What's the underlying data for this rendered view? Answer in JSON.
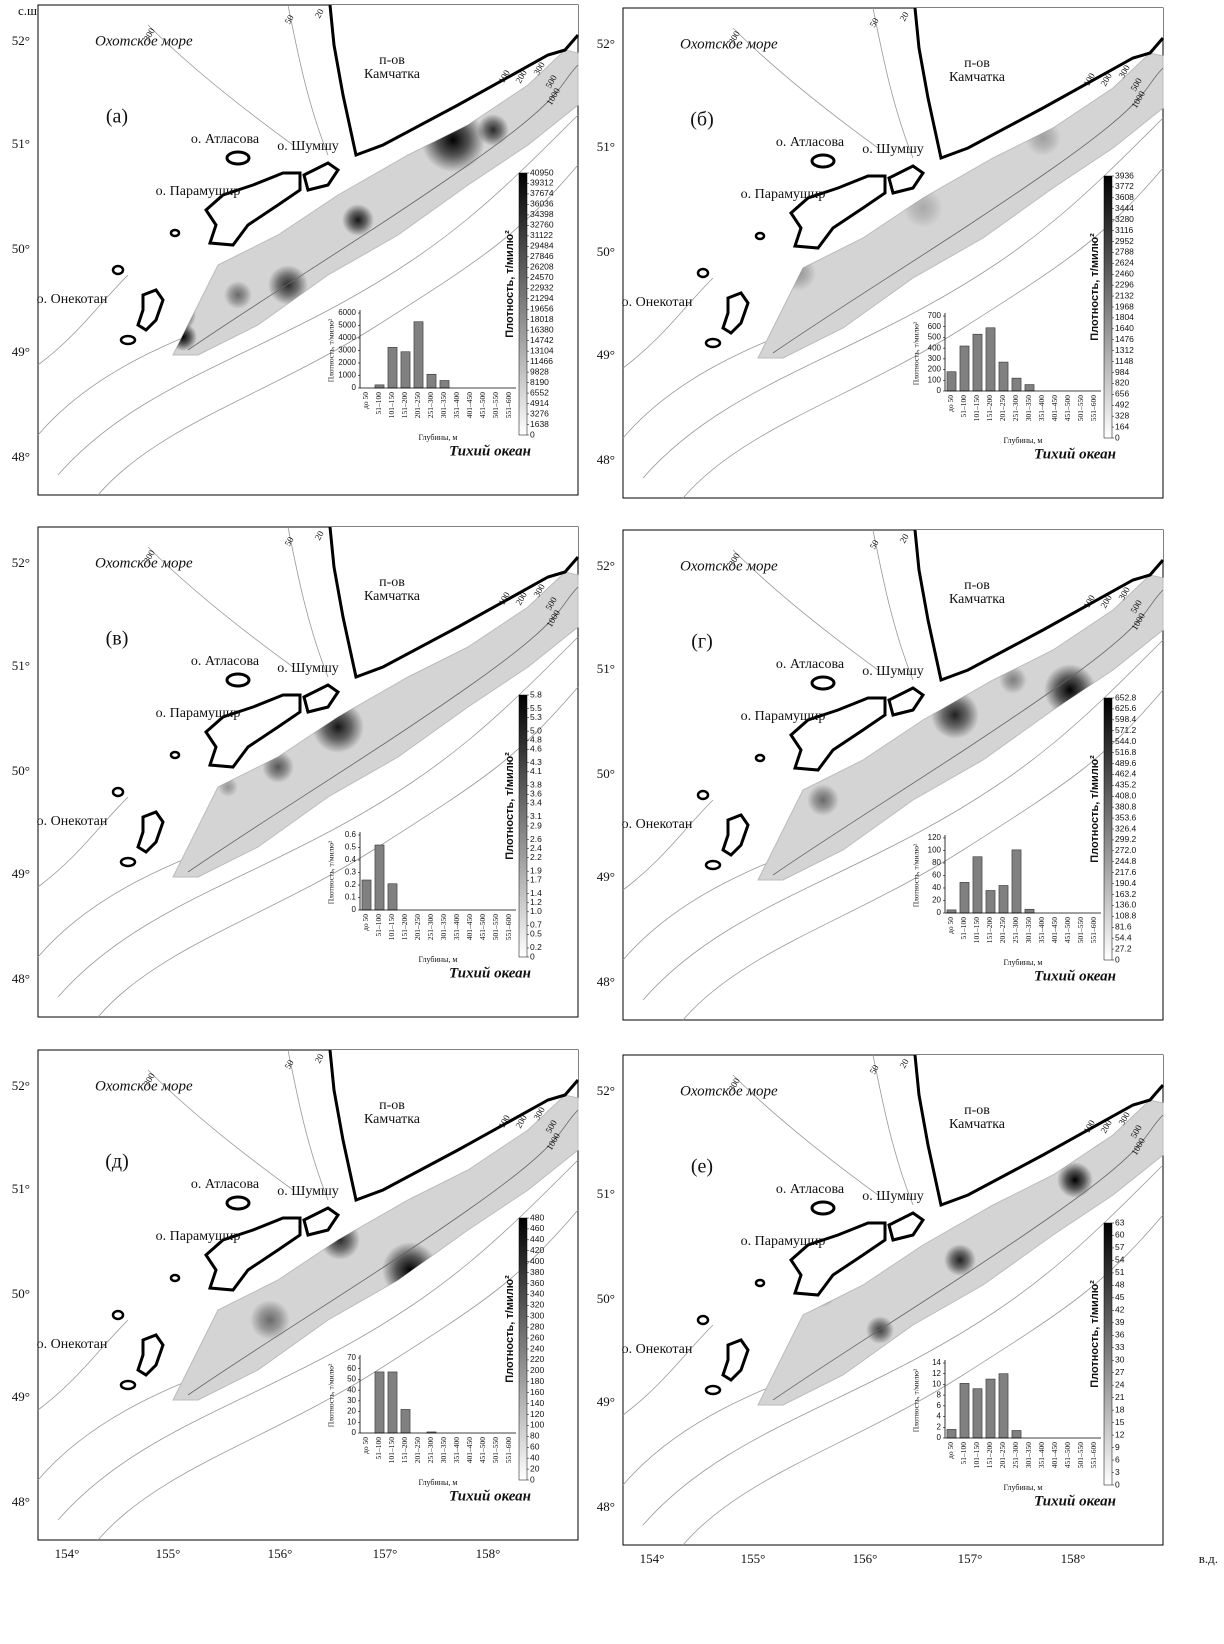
{
  "map": {
    "lat_unit": "с.ш.",
    "lon_unit": "в.д.",
    "lat_labels": [
      "52°",
      "51°",
      "50°",
      "49°",
      "48°"
    ],
    "lon_labels": [
      "154°",
      "155°",
      "156°",
      "157°",
      "158°"
    ],
    "sea": "Охотское море",
    "ocean": "Тихий океан",
    "peninsula": [
      "п-ов",
      "Камчатка"
    ],
    "islands": [
      "о. Атласова",
      "о. Шумшу",
      "о. Парамушир",
      "о. Онекотан"
    ],
    "isobaths": [
      "300",
      "50",
      "20",
      "100",
      "200",
      "300",
      "500",
      "1000"
    ]
  },
  "panel_labels": [
    "(а)",
    "(б)",
    "(в)",
    "(г)",
    "(д)",
    "(е)"
  ],
  "colorbars": [
    {
      "title": "Плотность, т/милю²",
      "ticks": [
        0,
        1638,
        3276,
        4914,
        6552,
        8190,
        9828,
        11466,
        13104,
        14742,
        16380,
        18018,
        19656,
        21294,
        22932,
        24570,
        26208,
        27846,
        29484,
        31122,
        32760,
        34398,
        36036,
        37674,
        39312,
        40950
      ]
    },
    {
      "title": "Плотность, т/милю²",
      "ticks": [
        0,
        164,
        328,
        492,
        656,
        820,
        984,
        1148,
        1312,
        1476,
        1640,
        1804,
        1968,
        2132,
        2296,
        2460,
        2624,
        2788,
        2952,
        3116,
        3280,
        3444,
        3608,
        3772,
        3936
      ]
    },
    {
      "title": "Плотность, т/милю²",
      "ticks": [
        0,
        0.2,
        0.5,
        0.7,
        {
          "value": 1.0,
          "label": "1.0"
        },
        1.2,
        1.4,
        1.7,
        1.9,
        2.2,
        2.4,
        2.6,
        2.9,
        3.1,
        3.4,
        3.6,
        3.8,
        4.1,
        4.3,
        4.6,
        4.8,
        {
          "value": 5.0,
          "label": "5.0"
        },
        5.3,
        5.5,
        5.8
      ]
    },
    {
      "title": "Плотность, т/милю²",
      "ticks": [
        0,
        27.2,
        54.4,
        81.6,
        108.8,
        {
          "value": 136,
          "label": "136.0"
        },
        163.2,
        190.4,
        217.6,
        244.8,
        {
          "value": 272,
          "label": "272.0"
        },
        299.2,
        326.4,
        353.6,
        380.8,
        {
          "value": 408,
          "label": "408.0"
        },
        435.2,
        462.4,
        489.6,
        516.8,
        {
          "value": 544,
          "label": "544.0"
        },
        571.2,
        598.4,
        625.6,
        652.8
      ]
    },
    {
      "title": "Плотность, т/милю²",
      "ticks": [
        0,
        20,
        40,
        60,
        80,
        100,
        120,
        140,
        160,
        180,
        200,
        220,
        240,
        260,
        280,
        300,
        320,
        340,
        360,
        380,
        400,
        420,
        440,
        460,
        480
      ]
    },
    {
      "title": "Плотность, т/милю²",
      "ticks": [
        0,
        3,
        6,
        9,
        12,
        15,
        18,
        21,
        24,
        27,
        30,
        33,
        36,
        39,
        42,
        45,
        48,
        51,
        54,
        57,
        60,
        63
      ]
    }
  ],
  "chart_data": [
    {
      "type": "bar",
      "color": "#808080",
      "xlabel": "Глубины, м",
      "ylabel": "Плотность, т/милю²",
      "categories": [
        "до 50",
        "51–100",
        "101–150",
        "151–200",
        "201–250",
        "251–300",
        "301–350",
        "351–400",
        "401–450",
        "451–500",
        "501–550",
        "551–600"
      ],
      "values": [
        0,
        250,
        3250,
        2900,
        5300,
        1100,
        600,
        0,
        0,
        0,
        0,
        0
      ],
      "ylim": [
        0,
        6000
      ],
      "yticks": [
        0,
        1000,
        2000,
        3000,
        4000,
        5000,
        6000
      ]
    },
    {
      "type": "bar",
      "color": "#808080",
      "xlabel": "Глубины, м",
      "ylabel": "Плотность, т/милю²",
      "categories": [
        "до 50",
        "51–100",
        "101–150",
        "151–200",
        "201–250",
        "251–300",
        "301–350",
        "351–400",
        "401–450",
        "451–500",
        "501–550",
        "551–600"
      ],
      "values": [
        180,
        420,
        530,
        590,
        270,
        120,
        60,
        0,
        0,
        0,
        0,
        0
      ],
      "ylim": [
        0,
        700
      ],
      "yticks": [
        0,
        100,
        200,
        300,
        400,
        500,
        600,
        700
      ]
    },
    {
      "type": "bar",
      "color": "#808080",
      "xlabel": "Глубины, м",
      "ylabel": "Плотность, т/милю²",
      "categories": [
        "до 50",
        "51–100",
        "101–150",
        "151–200",
        "201–250",
        "251–300",
        "301–350",
        "351–400",
        "401–450",
        "451–500",
        "501–550",
        "551–600"
      ],
      "values": [
        0.24,
        0.52,
        0.21,
        0,
        0,
        0,
        0,
        0,
        0,
        0,
        0,
        0
      ],
      "ylim": [
        0,
        0.6
      ],
      "yticks": [
        0,
        0.1,
        0.2,
        0.3,
        0.4,
        0.5,
        0.6
      ]
    },
    {
      "type": "bar",
      "color": "#808080",
      "xlabel": "Глубины, м",
      "ylabel": "Плотность, т/милю²",
      "categories": [
        "до 50",
        "51–100",
        "101–150",
        "151–200",
        "201–250",
        "251–300",
        "301–350",
        "351–400",
        "401–450",
        "451–500",
        "501–550",
        "551–600"
      ],
      "values": [
        5,
        49,
        90,
        36,
        44,
        101,
        6,
        0,
        0,
        0,
        0,
        0
      ],
      "ylim": [
        0,
        120
      ],
      "yticks": [
        0,
        20,
        40,
        60,
        80,
        100,
        120
      ]
    },
    {
      "type": "bar",
      "color": "#808080",
      "xlabel": "Глубины, м",
      "ylabel": "Плотность, т/милю²",
      "categories": [
        "до 50",
        "51–100",
        "101–150",
        "151–200",
        "201–250",
        "251–300",
        "301–350",
        "351–400",
        "401–450",
        "451–500",
        "501–550",
        "551–600"
      ],
      "values": [
        0,
        57,
        57,
        22,
        0,
        1,
        0,
        0,
        0,
        0,
        0,
        0
      ],
      "ylim": [
        0,
        70
      ],
      "yticks": [
        0,
        10,
        20,
        30,
        40,
        50,
        60,
        70
      ]
    },
    {
      "type": "bar",
      "color": "#808080",
      "xlabel": "Глубины, м",
      "ylabel": "Плотность, т/милю²",
      "categories": [
        "до 50",
        "51–100",
        "101–150",
        "151–200",
        "201–250",
        "251–300",
        "301–350",
        "351–400",
        "401–450",
        "451–500",
        "501–550",
        "551–600"
      ],
      "values": [
        1.6,
        10.2,
        9.2,
        11,
        12,
        1.4,
        0,
        0,
        0,
        0,
        0,
        0
      ],
      "ylim": [
        0,
        14
      ],
      "yticks": [
        0,
        2,
        4,
        6,
        8,
        10,
        12,
        14
      ]
    }
  ]
}
